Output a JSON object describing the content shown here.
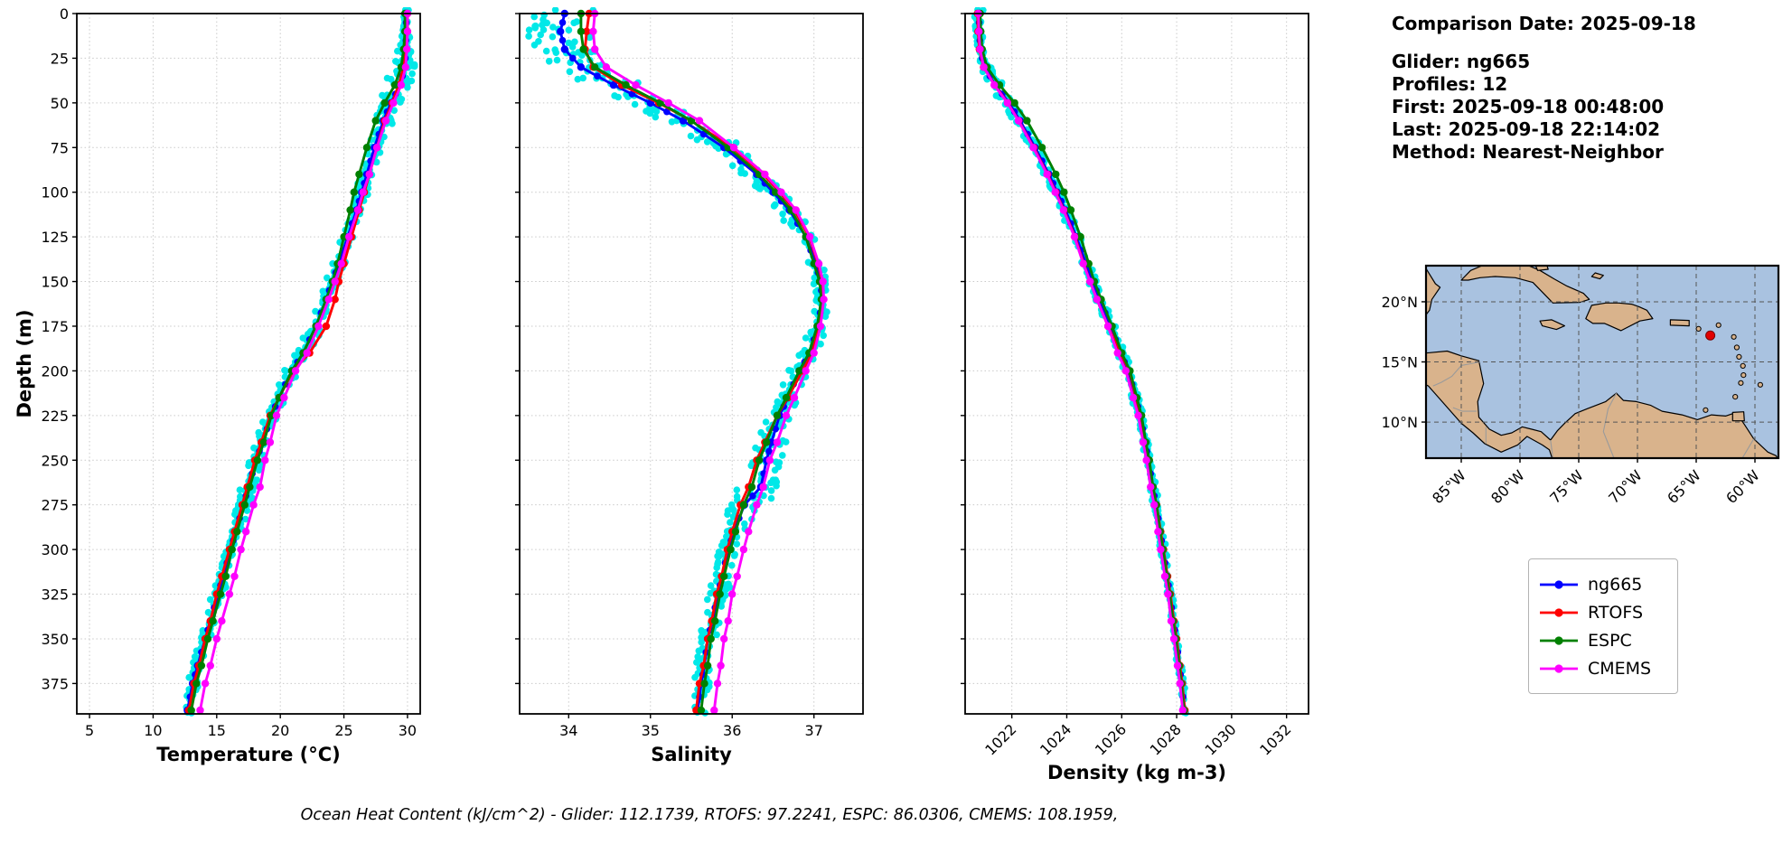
{
  "info_panel": {
    "date": "Comparison Date: 2025-09-18",
    "glider": "Glider: ng665",
    "profiles": "Profiles: 12",
    "first": "First: 2025-09-18 00:48:00",
    "last": "Last: 2025-09-18 22:14:02",
    "method": "Method: Nearest-Neighbor"
  },
  "footer": {
    "text": "Ocean Heat Content (kJ/cm^2) - Glider: 112.1739,  RTOFS: 97.2241,  ESPC: 86.0306,  CMEMS: 108.1959,"
  },
  "legend": [
    {
      "label": "ng665",
      "color": "#0000ff"
    },
    {
      "label": "RTOFS",
      "color": "#ff0000"
    },
    {
      "label": "ESPC",
      "color": "#008000"
    },
    {
      "label": "CMEMS",
      "color": "#ff00ff"
    }
  ],
  "map": {
    "extent": {
      "lon_min": -88,
      "lon_max": -58,
      "lat_min": 7,
      "lat_max": 23
    },
    "lat_values": [
      20,
      15,
      10
    ],
    "lat_labels": [
      "20°N",
      "15°N",
      "10°N"
    ],
    "lon_values": [
      -85,
      -80,
      -75,
      -70,
      -65,
      -60
    ],
    "lon_labels": [
      "85°W",
      "80°W",
      "75°W",
      "70°W",
      "65°W",
      "60°W"
    ],
    "glider_position": {
      "lon": -63.8,
      "lat": 17.2,
      "color": "#e10000"
    },
    "ocean_color": "#a9c2e0",
    "land_color": "#d9b38c"
  },
  "chart_data": [
    {
      "type": "line",
      "xlabel": "Temperature (°C)",
      "ylabel": "Depth (m)",
      "xlim": [
        4,
        31
      ],
      "xticks": [
        5,
        10,
        15,
        20,
        25,
        30
      ],
      "ylim": [
        0,
        392
      ],
      "yticks": [
        0,
        25,
        50,
        75,
        100,
        125,
        150,
        175,
        200,
        225,
        250,
        275,
        300,
        325,
        350,
        375
      ],
      "depths": [
        0,
        10,
        20,
        30,
        40,
        50,
        60,
        75,
        90,
        100,
        110,
        125,
        140,
        150,
        160,
        175,
        190,
        200,
        215,
        225,
        240,
        250,
        265,
        275,
        290,
        300,
        315,
        325,
        340,
        350,
        365,
        375,
        390
      ],
      "scatter": {
        "name": "glider-raw",
        "color": "#00e8e8",
        "spread": 0.35,
        "spread_profile": [
          0.5,
          0.8,
          1.4,
          2.6,
          2.8,
          2.2,
          1.4,
          1.2,
          1.1,
          1.0,
          1.0,
          1.0,
          1.1,
          1.2,
          1.2,
          1.1,
          1.0,
          1.0,
          1.0,
          1.1,
          1.2,
          1.4,
          1.5,
          1.3,
          1.1,
          1.0,
          1.0,
          1.0,
          0.9,
          0.9,
          0.9,
          0.9,
          0.9
        ],
        "values": [
          29.9,
          29.9,
          29.85,
          29.8,
          29.4,
          28.7,
          28.1,
          27.4,
          26.8,
          26.4,
          26.0,
          25.3,
          24.6,
          24.1,
          23.6,
          22.8,
          21.8,
          20.9,
          19.9,
          19.3,
          18.6,
          18.1,
          17.5,
          17.1,
          16.5,
          16.1,
          15.5,
          15.1,
          14.5,
          14.1,
          13.5,
          13.1,
          12.7
        ]
      },
      "series": [
        {
          "name": "ng665",
          "color": "#0000ff",
          "dense_markers": true,
          "values": [
            29.9,
            29.9,
            29.85,
            29.8,
            29.4,
            28.7,
            28.1,
            27.4,
            26.8,
            26.4,
            26.0,
            25.3,
            24.6,
            24.1,
            23.6,
            22.8,
            21.8,
            20.9,
            19.9,
            19.3,
            18.6,
            18.1,
            17.5,
            17.1,
            16.5,
            16.1,
            15.5,
            15.1,
            14.5,
            14.1,
            13.5,
            13.1,
            12.7
          ]
        },
        {
          "name": "RTOFS",
          "color": "#ff0000",
          "values": [
            30.0,
            30.0,
            29.9,
            29.7,
            29.3,
            28.8,
            28.2,
            27.6,
            27.0,
            26.6,
            26.2,
            25.6,
            25.0,
            24.6,
            24.3,
            23.6,
            22.3,
            21.0,
            19.9,
            19.2,
            18.5,
            18.0,
            17.4,
            17.0,
            16.4,
            16.0,
            15.4,
            15.0,
            14.5,
            14.1,
            13.6,
            13.2,
            12.8
          ]
        },
        {
          "name": "ESPC",
          "color": "#008000",
          "values": [
            29.8,
            29.8,
            29.7,
            29.5,
            29.0,
            28.2,
            27.5,
            26.8,
            26.2,
            25.8,
            25.5,
            25.0,
            24.5,
            24.1,
            23.6,
            22.8,
            21.8,
            20.9,
            19.9,
            19.3,
            18.7,
            18.2,
            17.6,
            17.2,
            16.6,
            16.2,
            15.7,
            15.3,
            14.7,
            14.3,
            13.8,
            13.4,
            13.0
          ]
        },
        {
          "name": "CMEMS",
          "color": "#ff00ff",
          "values": [
            30.0,
            30.0,
            29.95,
            29.85,
            29.5,
            28.9,
            28.3,
            27.6,
            27.0,
            26.5,
            26.1,
            25.4,
            24.8,
            24.3,
            23.8,
            23.0,
            22.1,
            21.2,
            20.3,
            19.7,
            19.2,
            18.8,
            18.4,
            17.9,
            17.3,
            16.9,
            16.4,
            16.0,
            15.4,
            15.0,
            14.5,
            14.1,
            13.7
          ]
        }
      ]
    },
    {
      "type": "line",
      "xlabel": "Salinity",
      "xlim": [
        33.4,
        37.6
      ],
      "xticks": [
        34,
        35,
        36,
        37
      ],
      "ylim": [
        0,
        392
      ],
      "yticks": [
        0,
        25,
        50,
        75,
        100,
        125,
        150,
        175,
        200,
        225,
        250,
        275,
        300,
        325,
        350,
        375
      ],
      "depths": [
        0,
        10,
        20,
        30,
        40,
        50,
        60,
        75,
        90,
        100,
        110,
        125,
        140,
        150,
        160,
        175,
        190,
        200,
        215,
        225,
        240,
        250,
        265,
        275,
        290,
        300,
        315,
        325,
        340,
        350,
        365,
        375,
        390
      ],
      "scatter": {
        "name": "glider-raw",
        "color": "#00e8e8",
        "spread": 0.12,
        "spread_profile": [
          3.0,
          3.5,
          3.5,
          2.6,
          1.6,
          1.3,
          1.1,
          1.0,
          0.9,
          0.9,
          0.8,
          0.7,
          0.7,
          0.7,
          0.7,
          0.7,
          0.8,
          0.9,
          1.0,
          1.1,
          1.3,
          1.6,
          1.8,
          1.5,
          1.1,
          1.0,
          0.9,
          0.9,
          0.8,
          0.8,
          0.8,
          0.8,
          0.8
        ],
        "values": [
          33.95,
          33.9,
          33.95,
          34.15,
          34.55,
          35.0,
          35.4,
          35.9,
          36.3,
          36.5,
          36.7,
          36.9,
          37.02,
          37.08,
          37.1,
          37.05,
          36.95,
          36.82,
          36.68,
          36.58,
          36.48,
          36.42,
          36.35,
          36.15,
          36.02,
          35.95,
          35.88,
          35.82,
          35.76,
          35.7,
          35.66,
          35.62,
          35.58
        ]
      },
      "series": [
        {
          "name": "ng665",
          "color": "#0000ff",
          "dense_markers": true,
          "values": [
            33.95,
            33.9,
            33.95,
            34.15,
            34.55,
            35.0,
            35.4,
            35.9,
            36.3,
            36.5,
            36.7,
            36.9,
            37.02,
            37.08,
            37.1,
            37.05,
            36.95,
            36.82,
            36.68,
            36.58,
            36.48,
            36.42,
            36.35,
            36.15,
            36.02,
            35.95,
            35.88,
            35.82,
            35.76,
            35.7,
            35.66,
            35.62,
            35.58
          ]
        },
        {
          "name": "RTOFS",
          "color": "#ff0000",
          "values": [
            34.25,
            34.22,
            34.2,
            34.3,
            34.65,
            35.1,
            35.5,
            36.0,
            36.38,
            36.58,
            36.76,
            36.94,
            37.05,
            37.1,
            37.1,
            37.06,
            36.98,
            36.86,
            36.68,
            36.55,
            36.4,
            36.3,
            36.2,
            36.1,
            36.0,
            35.94,
            35.87,
            35.81,
            35.75,
            35.7,
            35.65,
            35.6,
            35.56
          ]
        },
        {
          "name": "ESPC",
          "color": "#008000",
          "values": [
            34.15,
            34.15,
            34.18,
            34.32,
            34.7,
            35.12,
            35.5,
            35.95,
            36.33,
            36.53,
            36.72,
            36.9,
            37.0,
            37.07,
            37.09,
            37.04,
            36.94,
            36.82,
            36.66,
            36.55,
            36.42,
            36.33,
            36.24,
            36.14,
            36.04,
            35.98,
            35.9,
            35.85,
            35.79,
            35.74,
            35.7,
            35.66,
            35.62
          ]
        },
        {
          "name": "CMEMS",
          "color": "#ff00ff",
          "values": [
            34.32,
            34.3,
            34.32,
            34.46,
            34.82,
            35.22,
            35.6,
            36.02,
            36.4,
            36.6,
            36.78,
            36.95,
            37.06,
            37.11,
            37.12,
            37.08,
            37.0,
            36.9,
            36.76,
            36.66,
            36.55,
            36.46,
            36.38,
            36.3,
            36.2,
            36.14,
            36.06,
            36.0,
            35.95,
            35.9,
            35.86,
            35.82,
            35.78
          ]
        }
      ]
    },
    {
      "type": "line",
      "xlabel": "Density (kg m-3)",
      "xlim": [
        1020.3,
        1032.8
      ],
      "xticks": [
        1022,
        1024,
        1026,
        1028,
        1030,
        1032
      ],
      "xtick_rotation": 45,
      "ylim": [
        0,
        392
      ],
      "yticks": [
        0,
        25,
        50,
        75,
        100,
        125,
        150,
        175,
        200,
        225,
        250,
        275,
        300,
        325,
        350,
        375
      ],
      "depths": [
        0,
        10,
        20,
        30,
        40,
        50,
        60,
        75,
        90,
        100,
        110,
        125,
        140,
        150,
        160,
        175,
        190,
        200,
        215,
        225,
        240,
        250,
        265,
        275,
        290,
        300,
        315,
        325,
        340,
        350,
        365,
        375,
        390
      ],
      "scatter": {
        "name": "glider-raw",
        "color": "#00e8e8",
        "spread": 0.1,
        "spread_profile": [
          1.6,
          1.4,
          1.2,
          1.1,
          1.0,
          1.0,
          0.9,
          0.9,
          0.9,
          0.8,
          0.8,
          0.8,
          0.8,
          0.8,
          0.8,
          0.8,
          0.8,
          0.8,
          0.8,
          0.8,
          0.8,
          0.9,
          0.9,
          0.8,
          0.8,
          0.8,
          0.7,
          0.7,
          0.7,
          0.7,
          0.7,
          0.7,
          0.7
        ],
        "values": [
          1020.8,
          1020.82,
          1020.85,
          1021.0,
          1021.4,
          1021.9,
          1022.3,
          1022.85,
          1023.35,
          1023.65,
          1023.95,
          1024.35,
          1024.7,
          1024.95,
          1025.2,
          1025.6,
          1025.95,
          1026.25,
          1026.5,
          1026.68,
          1026.85,
          1026.98,
          1027.12,
          1027.25,
          1027.4,
          1027.5,
          1027.65,
          1027.75,
          1027.88,
          1027.98,
          1028.1,
          1028.18,
          1028.28
        ]
      },
      "series": [
        {
          "name": "ng665",
          "color": "#0000ff",
          "dense_markers": true,
          "values": [
            1020.8,
            1020.82,
            1020.85,
            1021.0,
            1021.4,
            1021.9,
            1022.3,
            1022.85,
            1023.35,
            1023.65,
            1023.95,
            1024.35,
            1024.7,
            1024.95,
            1025.2,
            1025.6,
            1025.95,
            1026.25,
            1026.5,
            1026.68,
            1026.85,
            1026.98,
            1027.12,
            1027.25,
            1027.4,
            1027.5,
            1027.65,
            1027.75,
            1027.88,
            1027.98,
            1028.1,
            1028.18,
            1028.28
          ]
        },
        {
          "name": "RTOFS",
          "color": "#ff0000",
          "values": [
            1020.75,
            1020.77,
            1020.82,
            1020.97,
            1021.38,
            1021.85,
            1022.25,
            1022.8,
            1023.3,
            1023.6,
            1023.9,
            1024.3,
            1024.62,
            1024.85,
            1025.1,
            1025.5,
            1025.95,
            1026.28,
            1026.52,
            1026.7,
            1026.87,
            1027.0,
            1027.14,
            1027.27,
            1027.42,
            1027.52,
            1027.67,
            1027.77,
            1027.9,
            1028.0,
            1028.12,
            1028.2,
            1028.3
          ]
        },
        {
          "name": "ESPC",
          "color": "#008000",
          "values": [
            1020.85,
            1020.87,
            1020.92,
            1021.1,
            1021.55,
            1022.1,
            1022.55,
            1023.1,
            1023.6,
            1023.9,
            1024.15,
            1024.5,
            1024.8,
            1025.0,
            1025.25,
            1025.65,
            1026.0,
            1026.3,
            1026.55,
            1026.72,
            1026.88,
            1027.0,
            1027.14,
            1027.26,
            1027.4,
            1027.5,
            1027.64,
            1027.74,
            1027.87,
            1027.97,
            1028.09,
            1028.17,
            1028.27
          ]
        },
        {
          "name": "CMEMS",
          "color": "#ff00ff",
          "values": [
            1020.78,
            1020.8,
            1020.84,
            1020.98,
            1021.36,
            1021.84,
            1022.24,
            1022.78,
            1023.28,
            1023.58,
            1023.88,
            1024.28,
            1024.6,
            1024.85,
            1025.1,
            1025.5,
            1025.85,
            1026.15,
            1026.42,
            1026.6,
            1026.78,
            1026.9,
            1027.05,
            1027.18,
            1027.32,
            1027.42,
            1027.57,
            1027.68,
            1027.8,
            1027.9,
            1028.03,
            1028.12,
            1028.22
          ]
        }
      ]
    }
  ]
}
